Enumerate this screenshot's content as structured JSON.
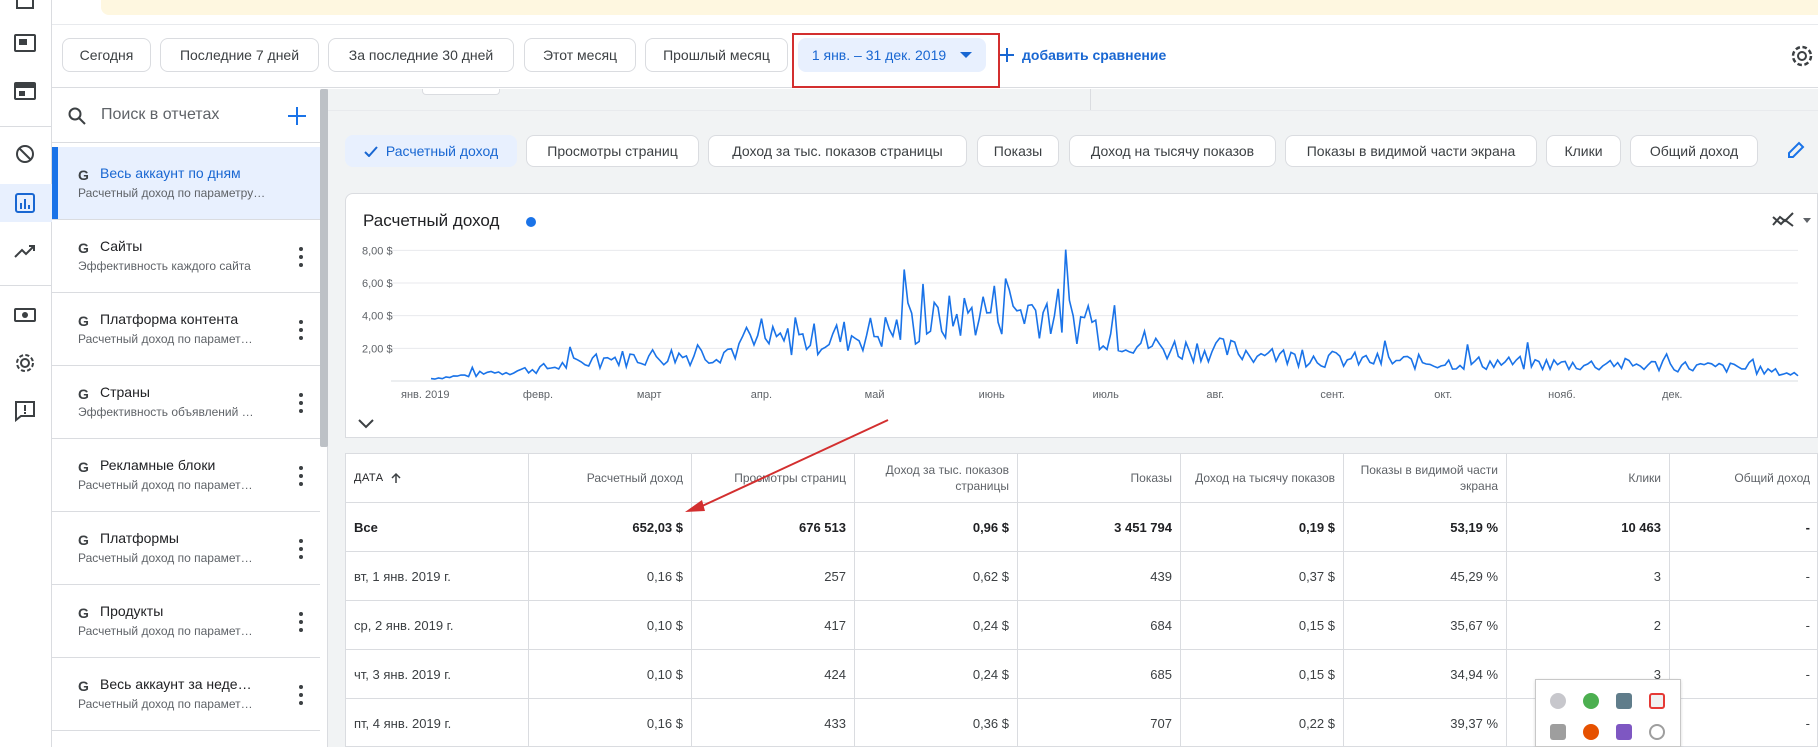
{
  "date_presets": [
    {
      "label": "Сегодня",
      "selected": false
    },
    {
      "label": "Последние 7 дней",
      "selected": false
    },
    {
      "label": "За последние 30 дней",
      "selected": false
    },
    {
      "label": "Этот месяц",
      "selected": false
    },
    {
      "label": "Прошлый месяц",
      "selected": false
    },
    {
      "label": "1 янв. – 31 дек. 2019",
      "selected": true
    }
  ],
  "add_comparison": "добавить сравнение",
  "search_placeholder": "Поиск в отчетах",
  "reports": [
    {
      "title": "Весь аккаунт по дням",
      "subtitle": "Расчетный доход по параметру \"Дат…",
      "active": true
    },
    {
      "title": "Сайты",
      "subtitle": "Эффективность каждого сайта",
      "active": false
    },
    {
      "title": "Платформа контента",
      "subtitle": "Расчетный доход по парамет…",
      "active": false
    },
    {
      "title": "Страны",
      "subtitle": "Эффективность объявлений …",
      "active": false
    },
    {
      "title": "Рекламные блоки",
      "subtitle": "Расчетный доход по парамет…",
      "active": false
    },
    {
      "title": "Платформы",
      "subtitle": "Расчетный доход по парамет…",
      "active": false
    },
    {
      "title": "Продукты",
      "subtitle": "Расчетный доход по парамет…",
      "active": false
    },
    {
      "title": "Весь аккаунт за неде…",
      "subtitle": "Расчетный доход по парамет…",
      "active": false
    }
  ],
  "metrics": [
    {
      "label": "Расчетный доход",
      "selected": true
    },
    {
      "label": "Просмотры страниц",
      "selected": false
    },
    {
      "label": "Доход за тыс. показов страницы",
      "selected": false
    },
    {
      "label": "Показы",
      "selected": false
    },
    {
      "label": "Доход на тысячу показов",
      "selected": false
    },
    {
      "label": "Показы в видимой части экрана",
      "selected": false
    },
    {
      "label": "Клики",
      "selected": false
    },
    {
      "label": "Общий доход",
      "selected": false
    }
  ],
  "chart_title": "Расчетный доход",
  "chart_data": {
    "type": "line",
    "title": "Расчетный доход",
    "y_ticks": [
      "2,00 $",
      "4,00 $",
      "6,00 $",
      "8,00 $"
    ],
    "x_ticks": [
      "янв. 2019",
      "февр.",
      "март",
      "апр.",
      "май",
      "июнь",
      "июль",
      "авг.",
      "сент.",
      "окт.",
      "нояб.",
      "дек."
    ],
    "ylim": [
      0,
      9
    ],
    "series": [
      {
        "name": "Расчетный доход",
        "color": "#1a73e8",
        "x": [
          "2019-01-01",
          "2019-01-15",
          "2019-02-01",
          "2019-02-15",
          "2019-03-01",
          "2019-03-15",
          "2019-04-01",
          "2019-04-15",
          "2019-05-01",
          "2019-05-15",
          "2019-06-01",
          "2019-06-15",
          "2019-07-01",
          "2019-07-15",
          "2019-08-01",
          "2019-08-15",
          "2019-09-01",
          "2019-09-15",
          "2019-10-01",
          "2019-10-15",
          "2019-11-01",
          "2019-11-15",
          "2019-12-01",
          "2019-12-15",
          "2019-12-31"
        ],
        "values": [
          0.15,
          0.45,
          0.8,
          1.3,
          1.5,
          1.6,
          2.4,
          2.6,
          3.0,
          3.6,
          4.5,
          4.3,
          2.9,
          2.0,
          1.9,
          1.5,
          1.3,
          1.2,
          1.1,
          1.1,
          1.0,
          1.0,
          0.9,
          0.8,
          0.4
        ]
      }
    ]
  },
  "table": {
    "headers": [
      "ДАТА",
      "Расчетный доход",
      "Просмотры страниц",
      "Доход за тыс. показов страницы",
      "Показы",
      "Доход на тысячу показов",
      "Показы в видимой части экрана",
      "Клики",
      "Общий доход"
    ],
    "rows": [
      [
        "Все",
        "652,03 $",
        "676 513",
        "0,96 $",
        "3 451 794",
        "0,19 $",
        "53,19 %",
        "10 463",
        "-"
      ],
      [
        "вт, 1 янв. 2019 г.",
        "0,16 $",
        "257",
        "0,62 $",
        "439",
        "0,37 $",
        "45,29 %",
        "3",
        "-"
      ],
      [
        "ср, 2 янв. 2019 г.",
        "0,10 $",
        "417",
        "0,24 $",
        "684",
        "0,15 $",
        "35,67 %",
        "2",
        "-"
      ],
      [
        "чт, 3 янв. 2019 г.",
        "0,10 $",
        "424",
        "0,24 $",
        "685",
        "0,15 $",
        "34,94 %",
        "3",
        "-"
      ],
      [
        "пт, 4 янв. 2019 г.",
        "0,16 $",
        "433",
        "0,36 $",
        "707",
        "0,22 $",
        "39,37 %",
        "",
        "-"
      ]
    ]
  }
}
